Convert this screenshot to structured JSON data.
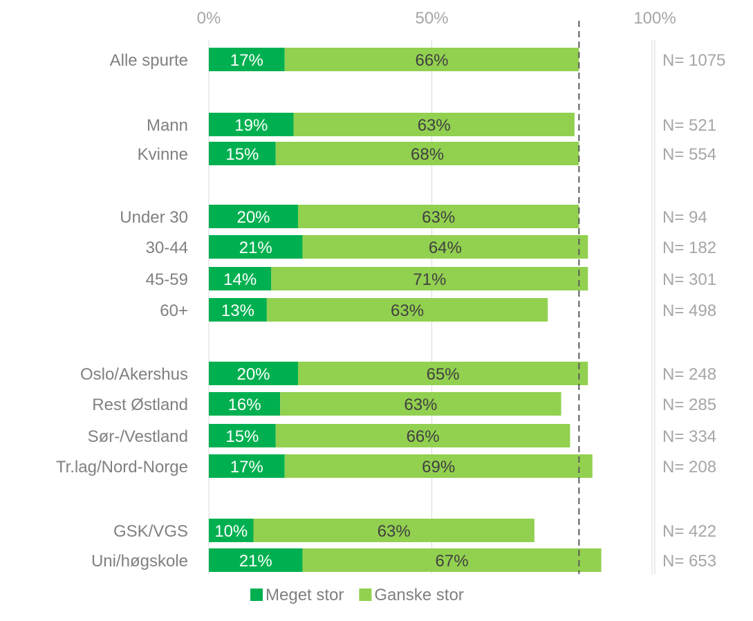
{
  "chart_data": {
    "type": "bar",
    "orientation": "horizontal",
    "stacked": true,
    "xlim": [
      0,
      100
    ],
    "x_ticks": [
      "0%",
      "50%",
      "100%"
    ],
    "grid": true,
    "legend_position": "bottom",
    "reference_line": {
      "value": 83,
      "style": "dashed"
    },
    "categories": [
      "Alle spurte",
      "Mann",
      "Kvinne",
      "Under 30",
      "30-44",
      "45-59",
      "60+",
      "Oslo/Akershus",
      "Rest Østland",
      "Sør-/Vestland",
      "Tr.lag/Nord-Norge",
      "GSK/VGS",
      "Uni/høgskole"
    ],
    "series": [
      {
        "name": "Meget stor",
        "color": "#00b050",
        "values": [
          17,
          19,
          15,
          20,
          21,
          14,
          13,
          20,
          16,
          15,
          17,
          10,
          21
        ],
        "labels": [
          "17%",
          "19%",
          "15%",
          "20%",
          "21%",
          "14%",
          "13%",
          "20%",
          "16%",
          "15%",
          "17%",
          "10%",
          "21%"
        ]
      },
      {
        "name": "Ganske stor",
        "color": "#92d050",
        "values": [
          66,
          63,
          68,
          63,
          64,
          71,
          63,
          65,
          63,
          66,
          69,
          63,
          67
        ],
        "labels": [
          "66%",
          "63%",
          "68%",
          "63%",
          "64%",
          "71%",
          "63%",
          "65%",
          "63%",
          "66%",
          "69%",
          "63%",
          "67%"
        ]
      }
    ],
    "n_labels": [
      "N= 1075",
      "N= 521",
      "N= 554",
      "N= 94",
      "N= 182",
      "N= 301",
      "N= 498",
      "N= 248",
      "N= 285",
      "N= 334",
      "N= 208",
      "N= 422",
      "N= 653"
    ]
  }
}
